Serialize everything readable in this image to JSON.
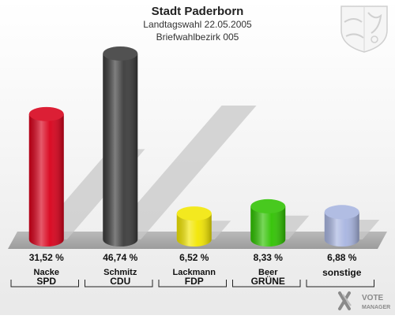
{
  "header": {
    "title": "Stadt Paderborn",
    "subtitle": "Landtagswahl 22.05.2005",
    "district": "Briefwahlbezirk 005"
  },
  "branding": {
    "watermark": "VOTE MANAGER",
    "crest_icon": "nrw-coat-of-arms-icon",
    "logo_icon": "vote-manager-logo-icon"
  },
  "colors": {
    "floor": "#a9a9a9",
    "shadow": "#c8c8c8"
  },
  "chart_data": {
    "type": "bar",
    "ylim": [
      0,
      50
    ],
    "grid": false,
    "legend": "none",
    "series": [
      {
        "candidate": "Nacke",
        "party": "SPD",
        "value": 31.52,
        "label": "31,52 %",
        "color": "#d8001a"
      },
      {
        "candidate": "Schmitz",
        "party": "CDU",
        "value": 46.74,
        "label": "46,74 %",
        "color": "#3a3a3a"
      },
      {
        "candidate": "Lackmann",
        "party": "FDP",
        "value": 6.52,
        "label": "6,52 %",
        "color": "#f2e600"
      },
      {
        "candidate": "Beer",
        "party": "GRÜNE",
        "value": 8.33,
        "label": "8,33 %",
        "color": "#2fc200"
      },
      {
        "candidate": "",
        "party": "sonstige",
        "value": 6.88,
        "label": "6,88 %",
        "color": "#a7b4e0"
      }
    ]
  }
}
